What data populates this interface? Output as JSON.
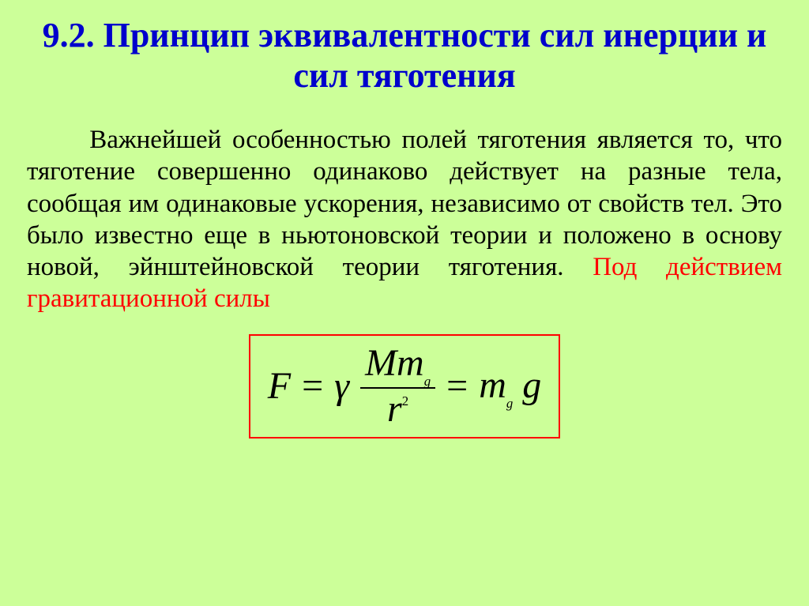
{
  "slide": {
    "background_color": "#ccff99",
    "title": {
      "text": "9.2. Принцип эквивалентности сил инерции и сил тяготения",
      "color": "#0000cc",
      "font_size_pt": 33,
      "font_weight": "bold",
      "align": "center"
    },
    "paragraph": {
      "font_size_pt": 25,
      "color": "#000000",
      "highlight_color": "#ff0000",
      "align": "justify",
      "indent_em": 2.4,
      "body_text": "Важнейшей особенностью полей тяготения является то, что тяготение совершенно одинаково действует на разные тела, сообщая им одинаковые ускорения, независимо от свойств тел. Это было известно еще в ньютоновской теории и положено в основу новой, эйнштейновской теории тяготения. ",
      "highlight_text": "Под действием гравитационной силы"
    },
    "formula": {
      "border_color": "#ff0000",
      "text_color": "#000000",
      "font_size_pt": 36,
      "lhs": "F",
      "eq": "=",
      "gamma": "γ",
      "numerator_M": "M",
      "numerator_m": "m",
      "numerator_sub": "g",
      "denominator_r": "r",
      "denominator_sup": "2",
      "rhs_m": "m",
      "rhs_sub": "g",
      "rhs_g": "g"
    }
  }
}
